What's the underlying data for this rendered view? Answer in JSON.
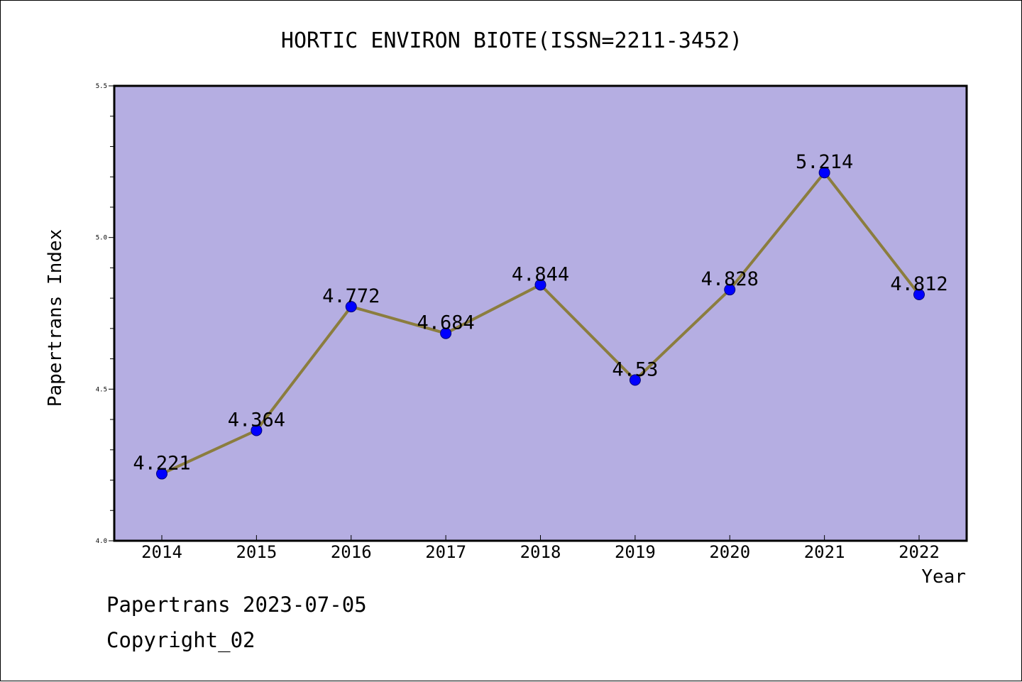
{
  "chart_data": {
    "type": "line",
    "title": "HORTIC ENVIRON BIOTE(ISSN=2211-3452)",
    "xlabel": "Year",
    "ylabel": "Papertrans Index",
    "categories": [
      "2014",
      "2015",
      "2016",
      "2017",
      "2018",
      "2019",
      "2020",
      "2021",
      "2022"
    ],
    "series": [
      {
        "values": [
          4.221,
          4.364,
          4.772,
          4.684,
          4.844,
          4.53,
          4.828,
          5.214,
          4.812
        ],
        "data_labels": [
          "4.221",
          "4.364",
          "4.772",
          "4.684",
          "4.844",
          "4.53",
          "4.828",
          "5.214",
          "4.812"
        ]
      }
    ],
    "ylim": [
      4.0,
      5.5
    ],
    "y_ticks": [
      "4.0",
      "4.5",
      "5.0",
      "5.5"
    ],
    "grid": false,
    "colors": {
      "plot_background": "#b5aee2",
      "line": "#8b7d3e",
      "marker": "#0000ff"
    }
  },
  "footer": {
    "line1": "Papertrans 2023-07-05",
    "line2": "Copyright_02"
  }
}
